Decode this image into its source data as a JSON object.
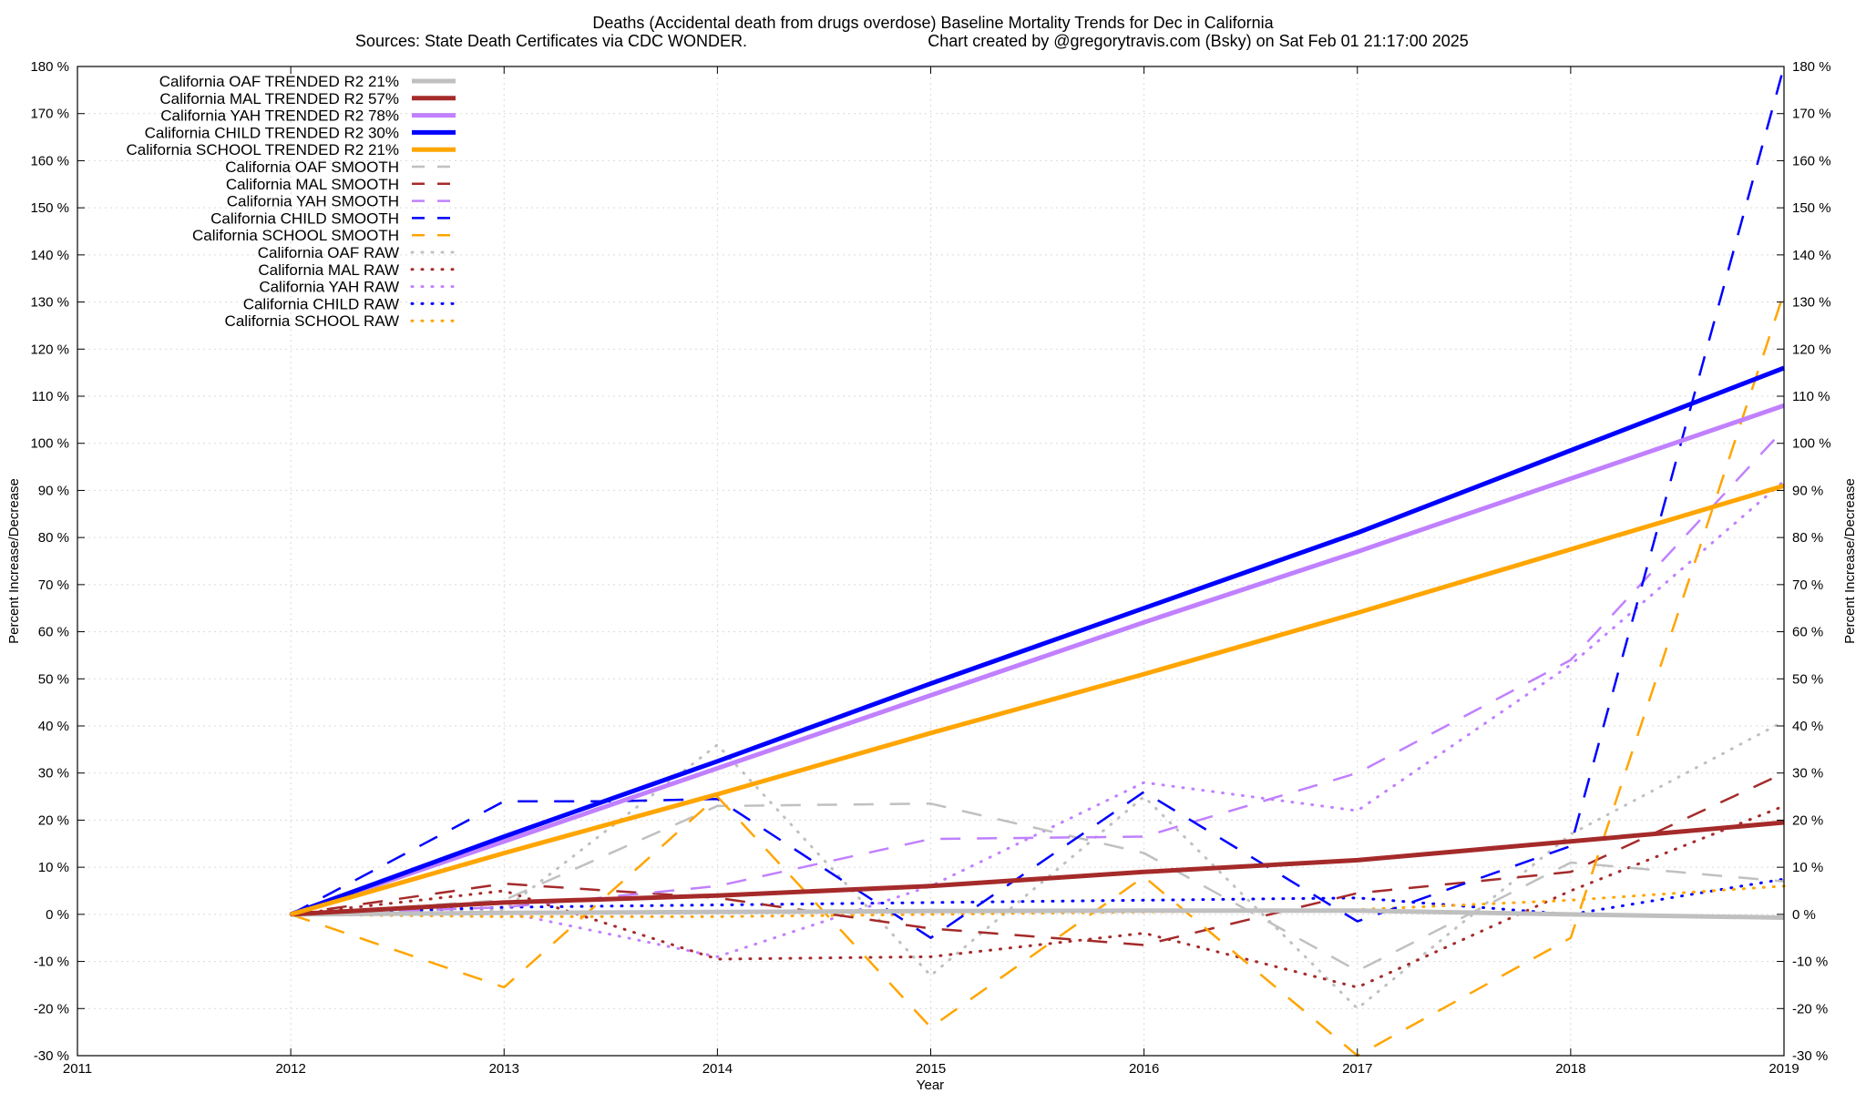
{
  "chart_data": {
    "type": "line",
    "title": "Deaths (Accidental death from drugs overdose)  Baseline Mortality Trends for Dec in California",
    "subtitle_left": "Sources: State Death Certificates via CDC WONDER.",
    "subtitle_right": "Chart created by @gregorytravis.com (Bsky) on Sat Feb 01 21:17:00 2025",
    "xlabel": "Year",
    "ylabel": "Percent Increase/Decrease",
    "y2label": "Percent Increase/Decrease",
    "xlim": [
      2011,
      2019
    ],
    "ylim": [
      -30,
      180
    ],
    "x_ticks": [
      "2011",
      "2012",
      "2013",
      "2014",
      "2015",
      "2016",
      "2017",
      "2018",
      "2019"
    ],
    "y_ticks": [
      "-30 %",
      "-20 %",
      "-10 %",
      "0 %",
      "10 %",
      "20 %",
      "30 %",
      "40 %",
      "50 %",
      "60 %",
      "70 %",
      "80 %",
      "90 %",
      "100 %",
      "110 %",
      "120 %",
      "130 %",
      "140 %",
      "150 %",
      "160 %",
      "170 %",
      "180 %"
    ],
    "grid": true,
    "legend_position": "top-left",
    "colors": {
      "OAF": "#c0c0c0",
      "MAL": "#a52a2a",
      "YAH": "#c080ff",
      "CHILD": "#0000ff",
      "SCHOOL": "#ffa500"
    },
    "series": [
      {
        "name": "California OAF TRENDED R2  21%",
        "group": "OAF",
        "style": "trend",
        "x": [
          2012,
          2013,
          2014,
          2015,
          2016,
          2017,
          2018,
          2019
        ],
        "values": [
          0,
          0.3,
          0.5,
          0.7,
          0.8,
          0.8,
          0,
          -0.7
        ]
      },
      {
        "name": "California MAL TRENDED R2  57%",
        "group": "MAL",
        "style": "trend",
        "x": [
          2012,
          2013,
          2014,
          2015,
          2016,
          2017,
          2018,
          2019
        ],
        "values": [
          0,
          2.5,
          4,
          6,
          9,
          11.5,
          15.5,
          19.5
        ]
      },
      {
        "name": "California YAH TRENDED R2  78%",
        "group": "YAH",
        "style": "trend",
        "x": [
          2012,
          2013,
          2014,
          2015,
          2016,
          2017,
          2018,
          2019
        ],
        "values": [
          0,
          15.5,
          31,
          46.5,
          62,
          77,
          92.5,
          108
        ]
      },
      {
        "name": "California CHILD TRENDED R2  30%",
        "group": "CHILD",
        "style": "trend",
        "x": [
          2012,
          2013,
          2014,
          2015,
          2016,
          2017,
          2018,
          2019
        ],
        "values": [
          0,
          16.5,
          32.5,
          49,
          65,
          81,
          98.5,
          116
        ]
      },
      {
        "name": "California SCHOOL TRENDED R2  21%",
        "group": "SCHOOL",
        "style": "trend",
        "x": [
          2012,
          2013,
          2014,
          2015,
          2016,
          2017,
          2018,
          2019
        ],
        "values": [
          0,
          13,
          25.5,
          38.5,
          51,
          64,
          77.5,
          91
        ]
      },
      {
        "name": "California OAF SMOOTH",
        "group": "OAF",
        "style": "smooth",
        "x": [
          2012,
          2013,
          2014,
          2015,
          2016,
          2017,
          2018,
          2019
        ],
        "values": [
          0,
          3,
          23,
          23.5,
          13,
          -12,
          11,
          7
        ]
      },
      {
        "name": "California MAL SMOOTH",
        "group": "MAL",
        "style": "smooth",
        "x": [
          2012,
          2013,
          2014,
          2015,
          2016,
          2017,
          2018,
          2019
        ],
        "values": [
          0,
          6.5,
          3.5,
          -3,
          -6.5,
          4.5,
          9,
          30
        ]
      },
      {
        "name": "California YAH SMOOTH",
        "group": "YAH",
        "style": "smooth",
        "x": [
          2012,
          2013,
          2014,
          2015,
          2016,
          2017,
          2018,
          2019
        ],
        "values": [
          0,
          1.5,
          6,
          16,
          16.5,
          30,
          54,
          103
        ]
      },
      {
        "name": "California CHILD SMOOTH",
        "group": "CHILD",
        "style": "smooth",
        "x": [
          2012,
          2013,
          2013.5,
          2014,
          2015,
          2016,
          2017,
          2018,
          2019
        ],
        "values": [
          0,
          24,
          24,
          24.5,
          -5,
          26,
          -1.5,
          14.5,
          180
        ]
      },
      {
        "name": "California SCHOOL SMOOTH",
        "group": "SCHOOL",
        "style": "smooth",
        "x": [
          2012,
          2013,
          2014,
          2015,
          2016,
          2017,
          2018,
          2019
        ],
        "values": [
          0,
          -15.5,
          25,
          -24,
          8,
          -30,
          -5,
          132
        ]
      },
      {
        "name": "California OAF RAW",
        "group": "OAF",
        "style": "raw",
        "x": [
          2012,
          2013,
          2014,
          2015,
          2016,
          2017,
          2018,
          2019
        ],
        "values": [
          0,
          1,
          36,
          -13,
          25,
          -20,
          17,
          41
        ]
      },
      {
        "name": "California MAL RAW",
        "group": "MAL",
        "style": "raw",
        "x": [
          2012,
          2013,
          2014,
          2015,
          2016,
          2017,
          2018,
          2019
        ],
        "values": [
          0,
          5,
          -9.5,
          -9,
          -4,
          -15.5,
          5,
          23
        ]
      },
      {
        "name": "California YAH RAW",
        "group": "YAH",
        "style": "raw",
        "x": [
          2012,
          2013,
          2014,
          2015,
          2016,
          2017,
          2018,
          2019
        ],
        "values": [
          0,
          0.5,
          -9,
          6,
          28,
          22,
          53,
          92
        ]
      },
      {
        "name": "California CHILD RAW",
        "group": "CHILD",
        "style": "raw",
        "x": [
          2012,
          2013,
          2014,
          2015,
          2016,
          2017,
          2018,
          2019
        ],
        "values": [
          0,
          1.5,
          2,
          2.5,
          3,
          3.5,
          0,
          7.5
        ]
      },
      {
        "name": "California SCHOOL RAW",
        "group": "SCHOOL",
        "style": "raw",
        "x": [
          2012,
          2013,
          2014,
          2015,
          2016,
          2017,
          2018,
          2019
        ],
        "values": [
          0,
          -0.5,
          -0.5,
          0,
          0.5,
          1,
          3,
          6
        ]
      }
    ]
  }
}
